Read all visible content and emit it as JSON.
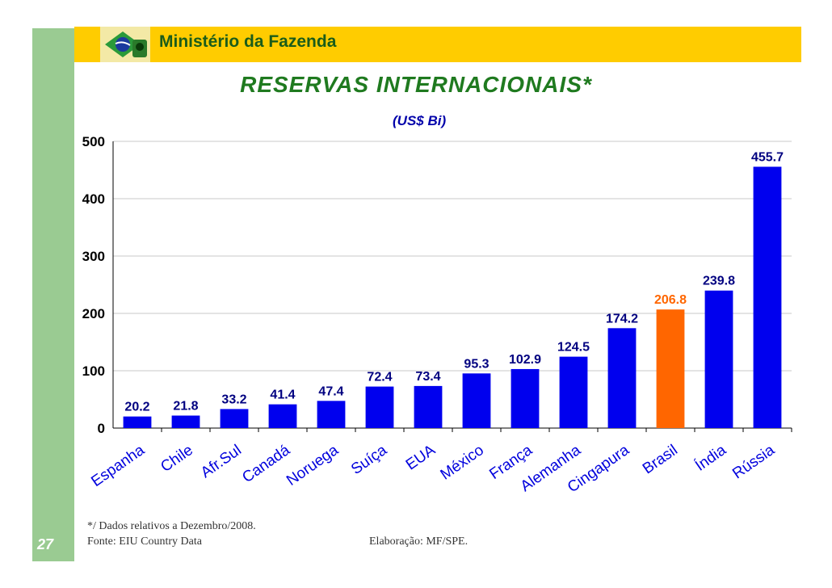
{
  "header": {
    "ministry": "Ministério da Fazenda"
  },
  "page_number": "27",
  "footnotes": {
    "note": "*/ Dados relativos a Dezembro/2008.",
    "source": "Fonte: EIU Country Data",
    "credit": "Elaboração: MF/SPE."
  },
  "colors": {
    "default_bar": "#0000ee",
    "highlight_bar": "#ff6600",
    "value_label": "#000080",
    "highlight_label": "#ff6600",
    "category_label": "#0000dd"
  },
  "chart_data": {
    "type": "bar",
    "title": "RESERVAS INTERNACIONAIS*",
    "subtitle": "(US$ Bi)",
    "categories": [
      "Espanha",
      "Chile",
      "Afr.Sul",
      "Canadá",
      "Noruega",
      "Suíça",
      "EUA",
      "México",
      "França",
      "Alemanha",
      "Cingapura",
      "Brasil",
      "Índia",
      "Rússia"
    ],
    "values": [
      20.2,
      21.8,
      33.2,
      41.4,
      47.4,
      72.4,
      73.4,
      95.3,
      102.9,
      124.5,
      174.2,
      206.8,
      239.8,
      455.7
    ],
    "value_labels": [
      "20.2",
      "21.8",
      "33.2",
      "41.4",
      "47.4",
      "72.4",
      "73.4",
      "95.3",
      "102.9",
      "124.5",
      "174.2",
      "206.8",
      "239.8",
      "455.7"
    ],
    "highlight": "Brasil",
    "yticks": [
      0,
      100,
      200,
      300,
      400,
      500
    ],
    "ylim": [
      0,
      500
    ],
    "xlabel": "",
    "ylabel": "",
    "grid": true,
    "legend": "none"
  }
}
